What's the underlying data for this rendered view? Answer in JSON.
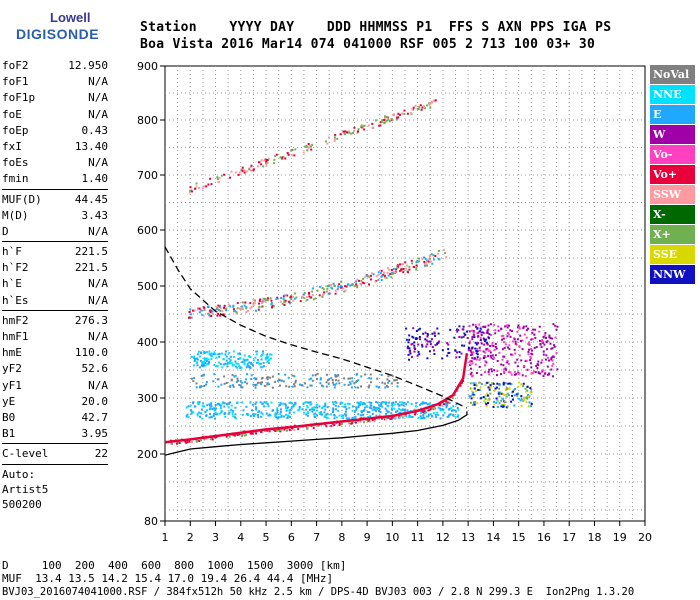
{
  "logo": {
    "line1": "Lowell",
    "line2": "DIGISONDE"
  },
  "header": {
    "line1": "Station    YYYY DAY    DDD HHMMSS P1  FFS S AXN PPS IGA PS",
    "line2": "Boa Vista 2016 Mar14 074 041000 RSF 005 2 713 100 03+ 30"
  },
  "params": [
    {
      "k": "foF2",
      "v": "12.950"
    },
    {
      "k": "foF1",
      "v": "N/A"
    },
    {
      "k": "foF1p",
      "v": "N/A"
    },
    {
      "k": "foE",
      "v": "N/A"
    },
    {
      "k": "foEp",
      "v": "0.43"
    },
    {
      "k": "fxI",
      "v": "13.40"
    },
    {
      "k": "foEs",
      "v": "N/A"
    },
    {
      "k": "fmin",
      "v": "1.40"
    },
    {
      "sep": true
    },
    {
      "k": "MUF(D)",
      "v": "44.45"
    },
    {
      "k": "M(D)",
      "v": "3.43"
    },
    {
      "k": "D",
      "v": "N/A"
    },
    {
      "sep": true
    },
    {
      "k": "h`F",
      "v": "221.5"
    },
    {
      "k": "h`F2",
      "v": "221.5"
    },
    {
      "k": "h`E",
      "v": "N/A"
    },
    {
      "k": "h`Es",
      "v": "N/A"
    },
    {
      "sep": true
    },
    {
      "k": "hmF2",
      "v": "276.3"
    },
    {
      "k": "hmF1",
      "v": "N/A"
    },
    {
      "k": "hmE",
      "v": "110.0"
    },
    {
      "k": "yF2",
      "v": "52.6"
    },
    {
      "k": "yF1",
      "v": "N/A"
    },
    {
      "k": "yE",
      "v": "20.0"
    },
    {
      "k": "B0",
      "v": "42.7"
    },
    {
      "k": "B1",
      "v": "3.95"
    },
    {
      "sep": true
    },
    {
      "k": "C-level",
      "v": "22"
    },
    {
      "sep": true
    },
    {
      "text": "Auto:"
    },
    {
      "text": "Artist5"
    },
    {
      "text": "500200"
    }
  ],
  "legend": [
    {
      "label": "NoVal",
      "color": "#808080"
    },
    {
      "label": "NNE",
      "color": "#00e0ff"
    },
    {
      "label": "E",
      "color": "#20a8ff"
    },
    {
      "label": "W",
      "color": "#a000a8"
    },
    {
      "label": "Vo-",
      "color": "#ff40c0"
    },
    {
      "label": "Vo+",
      "color": "#e8003c"
    },
    {
      "label": "SSW",
      "color": "#ff9aa0"
    },
    {
      "label": "X-",
      "color": "#006800"
    },
    {
      "label": "X+",
      "color": "#70b050"
    },
    {
      "label": "SSE",
      "color": "#d8d800"
    },
    {
      "label": "NNW",
      "color": "#1010c0"
    }
  ],
  "bottom": {
    "line1": "D     100  200  400  600  800  1000  1500  3000 [km]",
    "line2": "MUF  13.4 13.5 14.2 15.4 17.0 19.4 26.4 44.4 [MHz]",
    "line3": "BVJ03_2016074041000.RSF / 384fx512h 50 kHz 2.5 km / DPS-4D BVJ03 003 / 2.8 N 299.3 E  Ion2Png 1.3.20"
  },
  "chart_data": {
    "type": "scatter",
    "xlim": [
      1,
      20
    ],
    "ylim": [
      80,
      900
    ],
    "x_ticks": [
      1,
      2,
      3,
      4,
      5,
      6,
      7,
      8,
      9,
      10,
      11,
      12,
      13,
      14,
      15,
      16,
      17,
      18,
      19,
      20
    ],
    "y_ticks": [
      80,
      200,
      300,
      400,
      500,
      600,
      700,
      800,
      900
    ],
    "grid": true,
    "legend_position": "right",
    "curves": [
      {
        "name": "trace",
        "style": "solid",
        "color": "#e8003c",
        "x": [
          1.0,
          2.0,
          3.0,
          4.0,
          5.0,
          6.0,
          7.0,
          8.0,
          9.0,
          10.0,
          11.0,
          11.8,
          12.4,
          12.8,
          12.95
        ],
        "y": [
          221,
          226,
          232,
          238,
          244,
          248,
          253,
          258,
          263,
          268,
          277,
          289,
          305,
          335,
          380
        ]
      },
      {
        "name": "profile",
        "style": "solid",
        "color": "#000000",
        "x": [
          1.0,
          2.0,
          3.0,
          4.0,
          5.0,
          6.0,
          7.0,
          8.0,
          9.0,
          10.0,
          11.0,
          12.0,
          12.6,
          12.95,
          12.95
        ],
        "y": [
          198,
          209,
          213,
          217,
          220,
          223,
          226,
          229,
          233,
          237,
          242,
          251,
          260,
          270,
          276
        ]
      },
      {
        "name": "topside",
        "style": "dashed",
        "color": "#000000",
        "x": [
          1.0,
          1.5,
          2.0,
          3.0,
          4.0,
          5.0,
          6.0,
          7.0,
          8.0,
          9.0,
          10.0,
          11.0,
          12.0,
          12.95
        ],
        "y": [
          570,
          530,
          495,
          455,
          430,
          410,
          395,
          382,
          370,
          355,
          340,
          322,
          303,
          282
        ]
      }
    ],
    "clusters": [
      {
        "name": "F2 second hop",
        "x0": 1.9,
        "x1": 11.7,
        "y0": 675,
        "y1": 835,
        "n": 190,
        "colors": [
          "#e8003c",
          "#70b050",
          "#ff9aa0"
        ]
      },
      {
        "name": "F2 multi-hop",
        "x0": 1.9,
        "x1": 12.1,
        "y0": 455,
        "y1": 560,
        "n": 330,
        "colors": [
          "#e8003c",
          "#20a8ff",
          "#70b050",
          "#ff9aa0"
        ]
      },
      {
        "name": "F2 oblique E",
        "x0": 1.8,
        "x1": 12.6,
        "y0": 265,
        "y1": 295,
        "n": 520,
        "colors": [
          "#00e0ff",
          "#20a8ff",
          "#20a8ff"
        ]
      },
      {
        "name": "oblique band 1",
        "x0": 2.0,
        "x1": 5.2,
        "y0": 355,
        "y1": 385,
        "n": 160,
        "colors": [
          "#20a8ff",
          "#00e0ff"
        ]
      },
      {
        "name": "oblique band 2",
        "x0": 2.0,
        "x1": 10.2,
        "y0": 320,
        "y1": 345,
        "n": 180,
        "colors": [
          "#20a8ff",
          "#808080"
        ]
      },
      {
        "name": "spread F W",
        "x0": 13.0,
        "x1": 16.5,
        "y0": 340,
        "y1": 435,
        "n": 300,
        "colors": [
          "#a000a8",
          "#ff40c0",
          "#a000a8"
        ]
      },
      {
        "name": "spread F NNW",
        "x0": 10.5,
        "x1": 13.8,
        "y0": 370,
        "y1": 430,
        "n": 140,
        "colors": [
          "#1010c0",
          "#1010c0",
          "#a000a8"
        ]
      },
      {
        "name": "spread F low",
        "x0": 13.0,
        "x1": 15.5,
        "y0": 285,
        "y1": 330,
        "n": 170,
        "colors": [
          "#d8d800",
          "#20a8ff",
          "#70b050",
          "#1010c0"
        ]
      }
    ]
  }
}
